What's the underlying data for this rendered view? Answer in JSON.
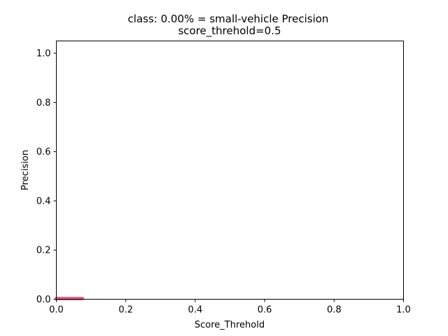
{
  "chart_data": {
    "type": "line",
    "title": "class: 0.00% = small-vehicle Precision",
    "subtitle": "score_threhold=0.5",
    "xlabel": "Score_Threhold",
    "ylabel": "Precision",
    "xlim": [
      0.0,
      1.0
    ],
    "ylim": [
      0.0,
      1.05
    ],
    "xticks": [
      "0.0",
      "0.2",
      "0.4",
      "0.6",
      "0.8",
      "1.0"
    ],
    "yticks": [
      "0.0",
      "0.2",
      "0.4",
      "0.6",
      "0.8",
      "1.0"
    ],
    "grid": false,
    "series": [
      {
        "color": "#d9668a",
        "x": [
          0.0,
          0.005,
          0.01,
          0.015,
          0.02,
          0.025,
          0.03,
          0.035,
          0.04,
          0.045,
          0.05,
          0.055,
          0.06,
          0.065,
          0.07,
          0.075
        ],
        "y": [
          0.0,
          0.0,
          0.0,
          0.0,
          0.0,
          0.0,
          0.0,
          0.0,
          0.0,
          0.0,
          0.0,
          0.0,
          0.0,
          0.0,
          0.0,
          0.0
        ]
      }
    ]
  }
}
